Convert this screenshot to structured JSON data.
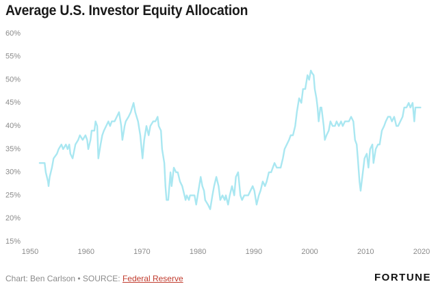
{
  "chart_data": {
    "type": "line",
    "title": "Average U.S. Investor Equity Allocation",
    "source_prefix": "Chart: Ben Carlson • SOURCE:",
    "source_link": "Federal Reserve",
    "brand": "FORTUNE",
    "color": "#a9e7f1",
    "xlim": [
      1950,
      2020
    ],
    "xticks": [
      1950,
      1960,
      1970,
      1980,
      1990,
      2000,
      2010,
      2020
    ],
    "ylim": [
      15,
      60
    ],
    "yticks": [
      {
        "value": 15,
        "label": "15%"
      },
      {
        "value": 20,
        "label": "20%"
      },
      {
        "value": 25,
        "label": "25%"
      },
      {
        "value": 30,
        "label": "30%"
      },
      {
        "value": 35,
        "label": "35%"
      },
      {
        "value": 40,
        "label": "40%"
      },
      {
        "value": 45,
        "label": "45%"
      },
      {
        "value": 50,
        "label": "50%"
      },
      {
        "value": 55,
        "label": "55%"
      },
      {
        "value": 60,
        "label": "60%"
      }
    ],
    "grid": false,
    "x": [
      1951.7,
      1952.6,
      1952.8,
      1953.2,
      1953.3,
      1953.5,
      1953.9,
      1954.2,
      1954.8,
      1955.1,
      1955.6,
      1955.9,
      1956.4,
      1956.7,
      1957.0,
      1957.2,
      1957.6,
      1958.1,
      1958.6,
      1958.9,
      1959.4,
      1959.9,
      1960.2,
      1960.4,
      1960.8,
      1961.0,
      1961.5,
      1961.7,
      1962.0,
      1962.2,
      1962.6,
      1962.9,
      1963.2,
      1963.6,
      1964.0,
      1964.3,
      1964.6,
      1965.1,
      1965.5,
      1965.9,
      1966.3,
      1966.5,
      1966.9,
      1967.1,
      1967.6,
      1968.0,
      1968.5,
      1968.8,
      1969.3,
      1969.7,
      1970.1,
      1970.4,
      1970.8,
      1971.2,
      1971.5,
      1972.0,
      1972.4,
      1972.8,
      1973.0,
      1973.4,
      1973.6,
      1974.0,
      1974.2,
      1974.4,
      1974.7,
      1975.1,
      1975.3,
      1975.7,
      1976.1,
      1976.4,
      1976.8,
      1977.2,
      1977.4,
      1977.8,
      1978.0,
      1978.4,
      1978.6,
      1979.0,
      1979.4,
      1979.7,
      1980.1,
      1980.5,
      1980.8,
      1981.1,
      1981.3,
      1981.8,
      1982.2,
      1982.6,
      1982.9,
      1983.3,
      1983.7,
      1984.0,
      1984.4,
      1984.8,
      1985.0,
      1985.4,
      1985.7,
      1986.1,
      1986.5,
      1986.8,
      1987.2,
      1987.6,
      1987.9,
      1988.3,
      1988.7,
      1989.0,
      1989.4,
      1989.8,
      1990.1,
      1990.5,
      1990.9,
      1991.2,
      1991.6,
      1992.0,
      1992.3,
      1992.7,
      1993.1,
      1993.4,
      1993.7,
      1994.1,
      1994.4,
      1994.8,
      1995.2,
      1995.5,
      1995.9,
      1996.3,
      1996.6,
      1997.0,
      1997.4,
      1997.7,
      1998.1,
      1998.5,
      1998.8,
      1999.2,
      1999.6,
      1999.9,
      2000.2,
      2000.4,
      2000.7,
      2000.9,
      2001.2,
      2001.4,
      2001.6,
      2001.9,
      2002.1,
      2002.5,
      2002.7,
      2003.0,
      2003.4,
      2003.7,
      2004.1,
      2004.5,
      2004.8,
      2005.2,
      2005.6,
      2005.9,
      2006.3,
      2006.7,
      2007.0,
      2007.4,
      2007.8,
      2008.1,
      2008.4,
      2008.6,
      2008.9,
      2009.1,
      2009.5,
      2009.8,
      2010.2,
      2010.5,
      2010.8,
      2011.2,
      2011.4,
      2011.8,
      2012.2,
      2012.5,
      2012.9,
      2013.3,
      2013.6,
      2014.0,
      2014.4,
      2014.7,
      2015.1,
      2015.5,
      2015.8,
      2016.2,
      2016.6,
      2016.9,
      2017.3,
      2017.7,
      2018.0,
      2018.4,
      2018.7,
      2018.9,
      2019.4,
      2019.8
    ],
    "values": [
      32,
      32,
      30,
      28,
      27,
      29,
      31,
      33,
      34,
      35,
      36,
      35,
      36,
      35,
      36,
      34,
      33,
      36,
      37,
      38,
      37,
      38,
      37,
      35,
      37,
      39,
      39,
      41,
      40,
      33,
      36,
      38,
      39,
      40,
      41,
      40,
      41,
      41,
      42,
      43,
      40,
      37,
      40,
      41,
      42,
      43,
      45,
      43,
      41,
      38,
      33,
      37,
      40,
      38,
      40,
      41,
      41,
      42,
      40,
      39,
      35,
      32,
      27,
      24,
      24,
      30,
      27,
      31,
      30,
      30,
      28,
      27,
      26,
      24,
      25,
      24,
      25,
      25,
      25,
      23,
      26,
      29,
      27,
      26,
      24,
      23,
      22,
      25,
      27,
      29,
      27,
      24,
      25,
      24,
      25,
      23,
      25,
      27,
      25,
      29,
      30,
      25,
      24,
      25,
      25,
      25,
      26,
      27,
      26,
      23,
      25,
      26,
      28,
      27,
      28,
      30,
      30,
      31,
      32,
      31,
      31,
      31,
      33,
      35,
      36,
      37,
      38,
      38,
      40,
      43,
      46,
      45,
      48,
      48,
      51,
      50,
      52,
      51.5,
      51,
      48,
      46,
      44,
      41,
      44,
      44,
      40,
      37,
      38,
      39,
      41,
      40,
      40,
      41,
      40,
      41,
      40,
      41,
      41,
      41,
      42,
      41,
      37,
      36,
      33,
      28,
      26,
      30,
      33,
      34,
      31,
      35,
      36,
      32,
      35,
      36,
      36,
      39,
      40,
      41,
      42,
      42,
      41,
      42,
      40,
      40,
      41,
      42,
      44,
      44,
      45,
      44,
      45,
      41,
      44,
      44,
      44
    ]
  }
}
